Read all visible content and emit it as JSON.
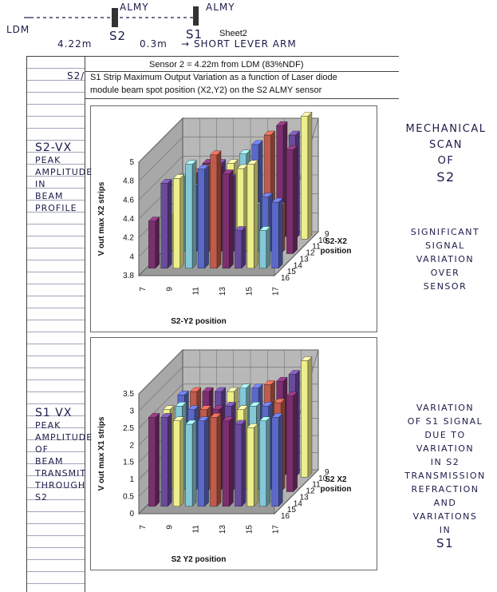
{
  "top_notes": {
    "almy_left": "ALMY",
    "almy_right": "ALMY",
    "ldm": "LDM",
    "dist1": "4.22m",
    "s2": "S2",
    "dist2": "0.3m",
    "s1": "S1",
    "sheet_name": "Sheet2",
    "arrow_note": "→ SHORT LEVER ARM"
  },
  "sheet": {
    "sensor_line": "Sensor 2 = 4.22m from LDM (83%NDF)",
    "title_prefix": "S2/",
    "title_line1": "S1 Strip Maximum Output Variation as a function of Laser diode",
    "title_line2": "module beam spot position (X2,Y2) on the S2 ALMY sensor"
  },
  "annotations": {
    "left_top": [
      "S2-VX",
      "PEAK",
      "AMPLITUDE",
      "IN",
      "BEAM",
      "PROFILE"
    ],
    "left_bottom": [
      "S1 VX",
      "PEAK",
      "AMPLITUDE",
      "OF",
      "BEAM",
      "TRANSMIT",
      "THROUGH",
      "S2"
    ],
    "right_1": [
      "MECHANICAL",
      "SCAN",
      "OF",
      "S2"
    ],
    "right_2": [
      "SIGNIFICANT",
      "SIGNAL",
      "VARIATION",
      "OVER",
      "SENSOR"
    ],
    "right_3": [
      "VARIATION",
      "OF S1 SIGNAL",
      "DUE TO",
      "VARIATION",
      "IN S2",
      "TRANSMISSION",
      "REFRACTION",
      "AND",
      "VARIATIONS",
      "IN",
      "S1"
    ]
  },
  "chart_data": [
    {
      "type": "bar3d",
      "ylabel": "V out max  X2 strips",
      "xlabel": "S2-Y2 position",
      "zlabel": "S2-X2\nposition",
      "z_ticks": [
        "3.8",
        "4",
        "4.2",
        "4.4",
        "4.6",
        "4.8",
        "5"
      ],
      "zlim": [
        3.8,
        5.0
      ],
      "x_ticks": [
        "7",
        "9",
        "11",
        "13",
        "15",
        "17"
      ],
      "depth_ticks": [
        "9",
        "10",
        "11",
        "12",
        "13",
        "14",
        "15",
        "16"
      ],
      "x": [
        7,
        8,
        9,
        10,
        11,
        12,
        13,
        14,
        15,
        16,
        17
      ],
      "series": [
        {
          "values": [
            4.3,
            4.7,
            4.75,
            4.9,
            4.85,
            5.0,
            4.8,
            4.2,
            4.9,
            4.2,
            4.5
          ]
        },
        {
          "values": [
            4.2,
            4.6,
            4.5,
            4.7,
            4.7,
            4.6,
            4.7,
            4.3,
            4.4,
            4.3,
            4.9
          ]
        },
        {
          "values": [
            4.1,
            4.5,
            4.6,
            4.6,
            4.6,
            4.7,
            4.8,
            4.9,
            5.0,
            4.9,
            5.1
          ]
        }
      ],
      "colors": [
        "#7b2f6e",
        "#6a4a9c",
        "#eeee8a",
        "#84c8d6",
        "#5a68c8",
        "#c05a4a"
      ]
    },
    {
      "type": "bar3d",
      "ylabel": "V out max X1 strips",
      "xlabel": "S2 Y2 position",
      "zlabel": "S2 X2\nposition",
      "z_ticks": [
        "0",
        "0.5",
        "1",
        "1.5",
        "2",
        "2.5",
        "3",
        "3.5"
      ],
      "zlim": [
        0,
        3.5
      ],
      "x_ticks": [
        "7",
        "9",
        "11",
        "13",
        "15",
        "17"
      ],
      "depth_ticks": [
        "9",
        "10",
        "11",
        "12",
        "13",
        "14",
        "15",
        "16"
      ],
      "x": [
        7,
        8,
        9,
        10,
        11,
        12,
        13,
        14,
        15,
        16,
        17
      ],
      "series": [
        {
          "values": [
            2.6,
            2.6,
            2.5,
            2.4,
            2.5,
            2.6,
            2.5,
            2.4,
            2.3,
            2.5,
            2.6
          ]
        },
        {
          "values": [
            2.4,
            2.5,
            2.4,
            2.4,
            2.4,
            2.5,
            2.4,
            2.5,
            2.5,
            2.6,
            2.8
          ]
        },
        {
          "values": [
            2.4,
            2.5,
            2.5,
            2.5,
            2.5,
            2.6,
            2.6,
            2.7,
            2.8,
            3.0,
            3.4
          ]
        }
      ],
      "colors": [
        "#7b2f6e",
        "#6a4a9c",
        "#eeee8a",
        "#84c8d6",
        "#5a68c8",
        "#c05a4a"
      ]
    }
  ]
}
